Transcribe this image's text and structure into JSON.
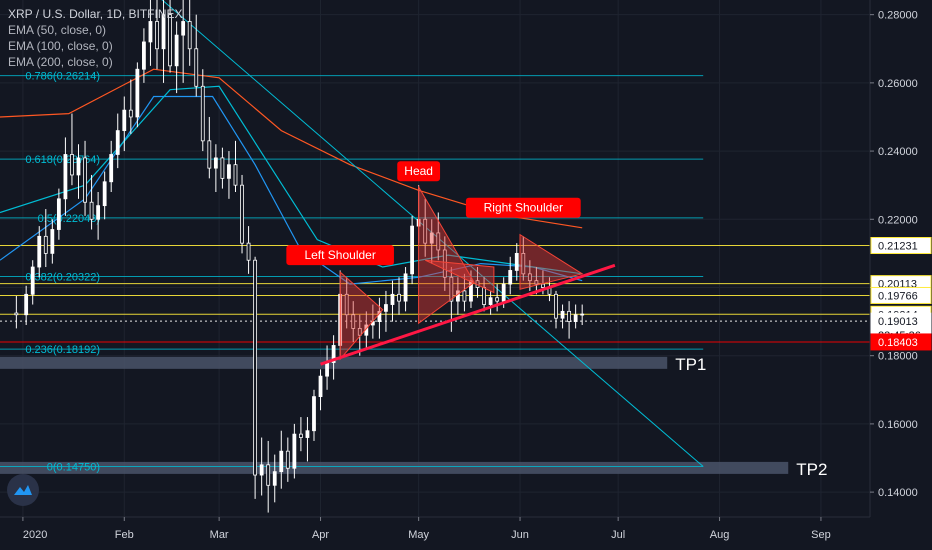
{
  "chart_data": {
    "type": "candlestick",
    "symbol_line": "XRP / U.S. Dollar, 1D, BITFINEX",
    "indicators": [
      "EMA (50, close, 0)",
      "EMA (100, close, 0)",
      "EMA (200, close, 0)"
    ],
    "y_axis": {
      "range": [
        0.1327,
        0.2843
      ],
      "ticks": [
        0.28,
        0.26,
        0.24,
        0.22,
        0.2,
        0.18,
        0.16,
        0.14
      ],
      "tick_labels": [
        "0.28000",
        "0.26000",
        "0.24000",
        "0.22000",
        "0.20000",
        "0.18000",
        "0.16000",
        "0.14000"
      ]
    },
    "x_axis": {
      "labels": [
        "2020",
        "Feb",
        "Mar",
        "Apr",
        "May",
        "Jun",
        "Jul",
        "Aug",
        "Sep"
      ],
      "dates": [
        "2020-01-01",
        "2020-02-01",
        "2020-03-01",
        "2020-04-01",
        "2020-05-01",
        "2020-06-01",
        "2020-07-01",
        "2020-08-01",
        "2020-09-01"
      ],
      "range": [
        "2019-12-25",
        "2020-09-16"
      ]
    },
    "price_badges": [
      {
        "value": 0.21231,
        "label": "0.21231",
        "bg": "#ffffff",
        "color": "#131722",
        "border": "#ffeb3b"
      },
      {
        "value": 0.20113,
        "label": "0.20113",
        "bg": "#ffffff",
        "color": "#131722",
        "border": "#ffeb3b"
      },
      {
        "value": 0.19766,
        "label": "0.19766",
        "bg": "#ffffff",
        "color": "#131722",
        "border": "#ffeb3b"
      },
      {
        "value": 0.19214,
        "label": "0.19214",
        "bg": "#ffffff",
        "color": "#131722",
        "border": "#ffeb3b"
      },
      {
        "value": 0.19013,
        "label": "0.19013",
        "bg": "#ffffff",
        "color": "#131722",
        "border": "#ffffff"
      },
      {
        "value": 0.1861,
        "label": "23:45:36",
        "bg": "#ffffff",
        "color": "#131722",
        "border": "#ffffff"
      },
      {
        "value": 0.18403,
        "label": "0.18403",
        "bg": "#ff0000",
        "color": "#ffffff",
        "border": "#ff0000"
      }
    ],
    "fibonacci": [
      {
        "label": "0.786(0.26214)",
        "value": 0.26214
      },
      {
        "label": "0.618(0.23764)",
        "value": 0.23764
      },
      {
        "label": "0.5(0.22043)",
        "value": 0.22043
      },
      {
        "label": "0.382(0.20322)",
        "value": 0.20322
      },
      {
        "label": "0.236(0.18192)",
        "value": 0.18192
      },
      {
        "label": "0(0.14750)",
        "value": 0.1475
      }
    ],
    "horizontal_lines": [
      {
        "value": 0.21231,
        "color": "#ffeb3b"
      },
      {
        "value": 0.20113,
        "color": "#ffeb3b"
      },
      {
        "value": 0.19766,
        "color": "#ffeb3b"
      },
      {
        "value": 0.19214,
        "color": "#ffeb3b"
      },
      {
        "value": 0.19013,
        "color": "#ffffff",
        "dotted": true
      },
      {
        "value": 0.18403,
        "color": "#ff0000"
      }
    ],
    "targets": [
      {
        "label": "TP1",
        "value": 0.1779
      },
      {
        "label": "TP2",
        "value": 0.1471
      }
    ],
    "annotations": [
      {
        "label": "Head",
        "date": "2020-05-01",
        "value": 0.2294
      },
      {
        "label": "Left Shoulder",
        "date": "2020-04-07",
        "value": 0.2048
      },
      {
        "label": "Right Shoulder",
        "date": "2020-06-02",
        "value": 0.2187
      }
    ],
    "neckline": {
      "from": {
        "date": "2020-04-01",
        "value": 0.1775
      },
      "to": {
        "date": "2020-06-30",
        "value": 0.2065
      }
    },
    "trendline": {
      "from": {
        "date": "2020-02-12",
        "value": 0.2848
      },
      "to": {
        "date": "2020-07-27",
        "value": 0.1475
      }
    },
    "ema_series": [
      {
        "name": "EMA (50, close, 0)",
        "color": "#2196f3",
        "points": [
          [
            "2019-12-25",
            0.208
          ],
          [
            "2020-01-20",
            0.226
          ],
          [
            "2020-02-10",
            0.256
          ],
          [
            "2020-02-28",
            0.256
          ],
          [
            "2020-03-12",
            0.236
          ],
          [
            "2020-03-26",
            0.211
          ],
          [
            "2020-04-10",
            0.201
          ],
          [
            "2020-05-01",
            0.203
          ],
          [
            "2020-05-20",
            0.207
          ],
          [
            "2020-06-05",
            0.206
          ],
          [
            "2020-06-20",
            0.202
          ]
        ]
      },
      {
        "name": "EMA (100, close, 0)",
        "color": "#00bcd4",
        "points": [
          [
            "2019-12-25",
            0.222
          ],
          [
            "2020-01-20",
            0.23
          ],
          [
            "2020-02-15",
            0.258
          ],
          [
            "2020-03-01",
            0.259
          ],
          [
            "2020-03-15",
            0.238
          ],
          [
            "2020-03-31",
            0.214
          ],
          [
            "2020-04-20",
            0.206
          ],
          [
            "2020-05-10",
            0.2095
          ],
          [
            "2020-06-05",
            0.206
          ],
          [
            "2020-06-20",
            0.204
          ]
        ]
      },
      {
        "name": "EMA (200, close, 0)",
        "color": "#ff5722",
        "points": [
          [
            "2019-12-25",
            0.25
          ],
          [
            "2020-01-15",
            0.251
          ],
          [
            "2020-02-10",
            0.264
          ],
          [
            "2020-03-01",
            0.2615
          ],
          [
            "2020-03-20",
            0.246
          ],
          [
            "2020-04-10",
            0.236
          ],
          [
            "2020-05-01",
            0.2285
          ],
          [
            "2020-05-25",
            0.2215
          ],
          [
            "2020-06-20",
            0.2175
          ]
        ]
      }
    ],
    "candles_note": "approximate daily OHLC values read from the chart",
    "candles": [
      [
        "2019-12-30",
        0.1925,
        0.1975,
        0.188,
        0.192
      ],
      [
        "2020-01-02",
        0.192,
        0.2005,
        0.189,
        0.198
      ],
      [
        "2020-01-04",
        0.198,
        0.208,
        0.195,
        0.206
      ],
      [
        "2020-01-06",
        0.206,
        0.218,
        0.203,
        0.215
      ],
      [
        "2020-01-08",
        0.215,
        0.223,
        0.206,
        0.21
      ],
      [
        "2020-01-10",
        0.21,
        0.22,
        0.207,
        0.217
      ],
      [
        "2020-01-12",
        0.217,
        0.229,
        0.214,
        0.226
      ],
      [
        "2020-01-14",
        0.226,
        0.244,
        0.221,
        0.239
      ],
      [
        "2020-01-16",
        0.239,
        0.251,
        0.23,
        0.233
      ],
      [
        "2020-01-18",
        0.233,
        0.242,
        0.226,
        0.238
      ],
      [
        "2020-01-20",
        0.238,
        0.243,
        0.221,
        0.225
      ],
      [
        "2020-01-22",
        0.225,
        0.233,
        0.217,
        0.22
      ],
      [
        "2020-01-24",
        0.22,
        0.228,
        0.214,
        0.224
      ],
      [
        "2020-01-26",
        0.224,
        0.234,
        0.22,
        0.231
      ],
      [
        "2020-01-28",
        0.231,
        0.243,
        0.228,
        0.239
      ],
      [
        "2020-01-30",
        0.239,
        0.251,
        0.235,
        0.246
      ],
      [
        "2020-02-01",
        0.246,
        0.256,
        0.24,
        0.252
      ],
      [
        "2020-02-03",
        0.252,
        0.261,
        0.245,
        0.25
      ],
      [
        "2020-02-05",
        0.25,
        0.266,
        0.247,
        0.264
      ],
      [
        "2020-02-07",
        0.264,
        0.276,
        0.26,
        0.272
      ],
      [
        "2020-02-09",
        0.272,
        0.285,
        0.265,
        0.278
      ],
      [
        "2020-02-11",
        0.278,
        0.285,
        0.264,
        0.27
      ],
      [
        "2020-02-13",
        0.27,
        0.285,
        0.26,
        0.28
      ],
      [
        "2020-02-15",
        0.28,
        0.285,
        0.263,
        0.265
      ],
      [
        "2020-02-17",
        0.265,
        0.278,
        0.257,
        0.274
      ],
      [
        "2020-02-19",
        0.274,
        0.285,
        0.26,
        0.278
      ],
      [
        "2020-02-21",
        0.278,
        0.285,
        0.265,
        0.27
      ],
      [
        "2020-02-23",
        0.27,
        0.28,
        0.256,
        0.259
      ],
      [
        "2020-02-25",
        0.259,
        0.264,
        0.24,
        0.243
      ],
      [
        "2020-02-27",
        0.243,
        0.25,
        0.232,
        0.235
      ],
      [
        "2020-02-29",
        0.235,
        0.242,
        0.228,
        0.238
      ],
      [
        "2020-03-02",
        0.238,
        0.241,
        0.229,
        0.232
      ],
      [
        "2020-03-04",
        0.232,
        0.24,
        0.226,
        0.236
      ],
      [
        "2020-03-06",
        0.236,
        0.243,
        0.228,
        0.23
      ],
      [
        "2020-03-08",
        0.23,
        0.233,
        0.21,
        0.213
      ],
      [
        "2020-03-10",
        0.213,
        0.218,
        0.204,
        0.208
      ],
      [
        "2020-03-12",
        0.208,
        0.209,
        0.138,
        0.145
      ],
      [
        "2020-03-14",
        0.145,
        0.156,
        0.139,
        0.148
      ],
      [
        "2020-03-16",
        0.148,
        0.155,
        0.134,
        0.142
      ],
      [
        "2020-03-18",
        0.142,
        0.151,
        0.137,
        0.146
      ],
      [
        "2020-03-20",
        0.146,
        0.158,
        0.141,
        0.152
      ],
      [
        "2020-03-22",
        0.152,
        0.156,
        0.143,
        0.147
      ],
      [
        "2020-03-24",
        0.147,
        0.16,
        0.144,
        0.157
      ],
      [
        "2020-03-26",
        0.157,
        0.162,
        0.152,
        0.156
      ],
      [
        "2020-03-28",
        0.156,
        0.162,
        0.149,
        0.158
      ],
      [
        "2020-03-30",
        0.158,
        0.17,
        0.155,
        0.168
      ],
      [
        "2020-04-01",
        0.168,
        0.176,
        0.164,
        0.174
      ],
      [
        "2020-04-03",
        0.174,
        0.183,
        0.17,
        0.178
      ],
      [
        "2020-04-05",
        0.178,
        0.186,
        0.173,
        0.183
      ],
      [
        "2020-04-07",
        0.183,
        0.205,
        0.18,
        0.198
      ],
      [
        "2020-04-09",
        0.198,
        0.203,
        0.188,
        0.192
      ],
      [
        "2020-04-11",
        0.192,
        0.196,
        0.184,
        0.188
      ],
      [
        "2020-04-13",
        0.188,
        0.192,
        0.18,
        0.186
      ],
      [
        "2020-04-15",
        0.186,
        0.193,
        0.182,
        0.189
      ],
      [
        "2020-04-17",
        0.189,
        0.195,
        0.185,
        0.19
      ],
      [
        "2020-04-19",
        0.19,
        0.197,
        0.185,
        0.193
      ],
      [
        "2020-04-21",
        0.193,
        0.199,
        0.187,
        0.195
      ],
      [
        "2020-04-23",
        0.195,
        0.202,
        0.19,
        0.198
      ],
      [
        "2020-04-25",
        0.198,
        0.203,
        0.192,
        0.196
      ],
      [
        "2020-04-27",
        0.196,
        0.206,
        0.193,
        0.204
      ],
      [
        "2020-04-29",
        0.204,
        0.221,
        0.201,
        0.218
      ],
      [
        "2020-05-01",
        0.218,
        0.23,
        0.213,
        0.22
      ],
      [
        "2020-05-03",
        0.22,
        0.226,
        0.209,
        0.213
      ],
      [
        "2020-05-05",
        0.213,
        0.22,
        0.207,
        0.216
      ],
      [
        "2020-05-07",
        0.216,
        0.222,
        0.208,
        0.211
      ],
      [
        "2020-05-09",
        0.211,
        0.215,
        0.199,
        0.203
      ],
      [
        "2020-05-11",
        0.203,
        0.206,
        0.187,
        0.196
      ],
      [
        "2020-05-13",
        0.196,
        0.203,
        0.192,
        0.199
      ],
      [
        "2020-05-15",
        0.199,
        0.204,
        0.193,
        0.196
      ],
      [
        "2020-05-17",
        0.196,
        0.205,
        0.194,
        0.202
      ],
      [
        "2020-05-19",
        0.202,
        0.206,
        0.197,
        0.2
      ],
      [
        "2020-05-21",
        0.2,
        0.203,
        0.193,
        0.195
      ],
      [
        "2020-05-23",
        0.195,
        0.199,
        0.192,
        0.197
      ],
      [
        "2020-05-25",
        0.197,
        0.201,
        0.193,
        0.196
      ],
      [
        "2020-05-27",
        0.196,
        0.203,
        0.194,
        0.201
      ],
      [
        "2020-05-29",
        0.201,
        0.209,
        0.198,
        0.205
      ],
      [
        "2020-05-31",
        0.205,
        0.213,
        0.202,
        0.21
      ],
      [
        "2020-06-02",
        0.21,
        0.215,
        0.202,
        0.204
      ],
      [
        "2020-06-04",
        0.204,
        0.208,
        0.199,
        0.202
      ],
      [
        "2020-06-06",
        0.202,
        0.206,
        0.198,
        0.201
      ],
      [
        "2020-06-08",
        0.201,
        0.205,
        0.198,
        0.2
      ],
      [
        "2020-06-10",
        0.2,
        0.203,
        0.196,
        0.198
      ],
      [
        "2020-06-12",
        0.198,
        0.199,
        0.188,
        0.191
      ],
      [
        "2020-06-14",
        0.191,
        0.195,
        0.188,
        0.193
      ],
      [
        "2020-06-16",
        0.193,
        0.196,
        0.185,
        0.19
      ],
      [
        "2020-06-18",
        0.19,
        0.195,
        0.188,
        0.192
      ],
      [
        "2020-06-20",
        0.192,
        0.195,
        0.189,
        0.1922
      ]
    ]
  },
  "colors": {
    "background": "#131722",
    "grid": "#1f2430",
    "axis_text": "#d1d4dc",
    "up": "#ffffff",
    "down": "#ffffff",
    "fib": "#00bcd4",
    "pattern_fill": "#e53935",
    "pattern_stroke": "#f44336",
    "label_bg": "#ff0000",
    "tp_band": "#4a5468"
  }
}
